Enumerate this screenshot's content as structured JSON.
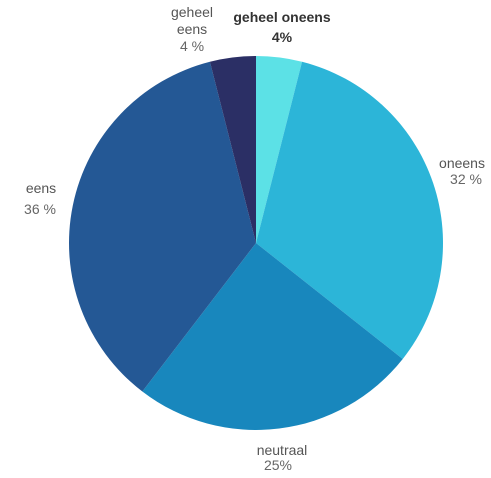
{
  "chart_data": {
    "type": "pie",
    "title": "",
    "categories": [
      "geheel oneens",
      "oneens",
      "neutraal",
      "eens",
      "geheel eens"
    ],
    "values": [
      4,
      32,
      25,
      36,
      4
    ],
    "percent_labels": [
      "4%",
      "32 %",
      "25%",
      "36 %",
      "4 %"
    ],
    "colors": [
      "#5ce1e6",
      "#2cb5d8",
      "#1887bd",
      "#245895",
      "#2b2f65"
    ],
    "start_angle_deg": 0,
    "direction": "clockwise",
    "legend": "none"
  }
}
